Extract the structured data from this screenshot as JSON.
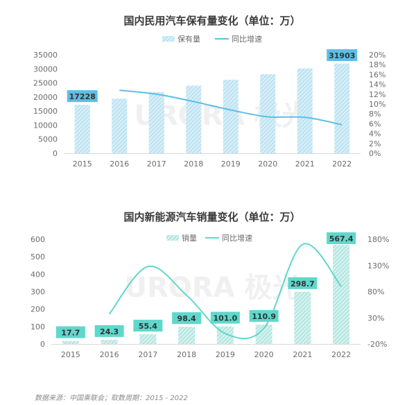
{
  "chart_data": [
    {
      "type": "bar",
      "title": "国内民用汽车保有量变化（单位：万）",
      "categories": [
        "2015",
        "2016",
        "2017",
        "2018",
        "2019",
        "2020",
        "2021",
        "2022"
      ],
      "series": [
        {
          "name": "保有量",
          "kind": "bar",
          "axis": "left",
          "values": [
            17228,
            19400,
            21743,
            24028,
            26150,
            28087,
            30151,
            31903
          ]
        },
        {
          "name": "同比增速",
          "kind": "line",
          "axis": "right",
          "values": [
            null,
            12.8,
            12.0,
            10.5,
            8.8,
            7.4,
            7.3,
            5.8
          ]
        }
      ],
      "ylim": [
        0,
        35000
      ],
      "yticks": [
        "0",
        "5000",
        "10000",
        "15000",
        "20000",
        "25000",
        "30000",
        "35000"
      ],
      "y2lim": [
        0,
        20
      ],
      "y2ticks": [
        "0%",
        "2%",
        "4%",
        "6%",
        "8%",
        "10%",
        "12%",
        "14%",
        "16%",
        "18%",
        "20%"
      ],
      "labels": [
        {
          "index": 0,
          "text": "17228"
        },
        {
          "index": 7,
          "text": "31903"
        }
      ],
      "colors": {
        "bar": "#9fd4ea",
        "bar_fill": "#c7e8f5",
        "line": "#5bbfe6",
        "label_bg": "#5bbfe6"
      }
    },
    {
      "type": "bar",
      "title": "国内新能源汽车销量变化（单位：万）",
      "categories": [
        "2015",
        "2016",
        "2017",
        "2018",
        "2019",
        "2020",
        "2021",
        "2022"
      ],
      "series": [
        {
          "name": "销量",
          "kind": "bar",
          "axis": "left",
          "values": [
            17.7,
            24.3,
            55.4,
            98.4,
            101.0,
            110.9,
            298.7,
            567.4
          ]
        },
        {
          "name": "同比增速",
          "kind": "line",
          "axis": "right",
          "values": [
            null,
            37,
            128,
            73,
            0,
            10,
            170,
            90
          ]
        }
      ],
      "ylim": [
        0,
        600
      ],
      "yticks": [
        "0",
        "100",
        "200",
        "300",
        "400",
        "500",
        "600"
      ],
      "y2lim": [
        -20,
        180
      ],
      "y2ticks": [
        "-20%",
        "30%",
        "80%",
        "130%",
        "180%"
      ],
      "labels": [
        {
          "index": 0,
          "text": "17.7"
        },
        {
          "index": 1,
          "text": "24.3"
        },
        {
          "index": 2,
          "text": "55.4"
        },
        {
          "index": 3,
          "text": "98.4"
        },
        {
          "index": 4,
          "text": "101.0"
        },
        {
          "index": 5,
          "text": "110.9"
        },
        {
          "index": 6,
          "text": "298.7"
        },
        {
          "index": 7,
          "text": "567.4"
        }
      ],
      "colors": {
        "bar": "#8fd9d2",
        "bar_fill": "#c4ece8",
        "line": "#5fd8cc",
        "label_bg": "#5fd8cc"
      }
    }
  ],
  "watermark": {
    "text": "URORA 极光"
  },
  "footer": {
    "source": "数据来源：中国乘联会；取数周期：2015 - 2022"
  }
}
